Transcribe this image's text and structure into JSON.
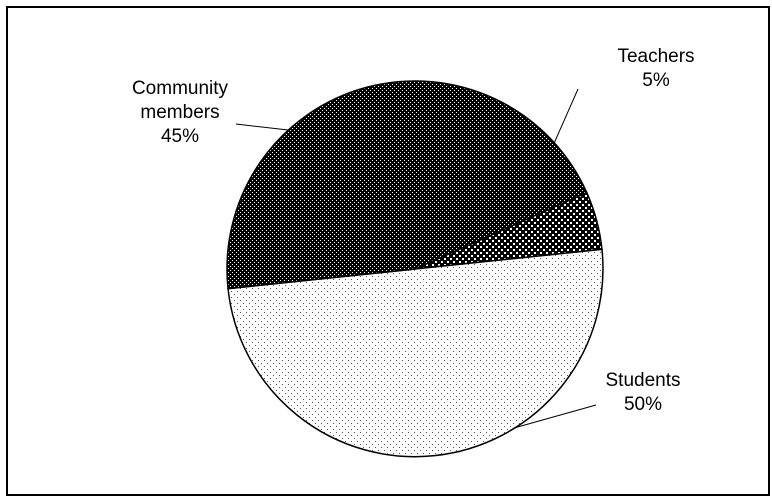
{
  "chart_data": {
    "type": "pie",
    "slices": [
      {
        "name": "Teachers",
        "value": 5,
        "label": [
          "Teachers",
          "5%"
        ],
        "pattern": "dark-large-dots"
      },
      {
        "name": "Students",
        "value": 50,
        "label": [
          "Students",
          "50%"
        ],
        "pattern": "light-sparse-dots"
      },
      {
        "name": "Community members",
        "value": 45,
        "label": [
          "Community",
          "members",
          "45%"
        ],
        "pattern": "dark-dense-dots"
      }
    ],
    "legend": "none",
    "label_style": "outside with leader lines"
  }
}
